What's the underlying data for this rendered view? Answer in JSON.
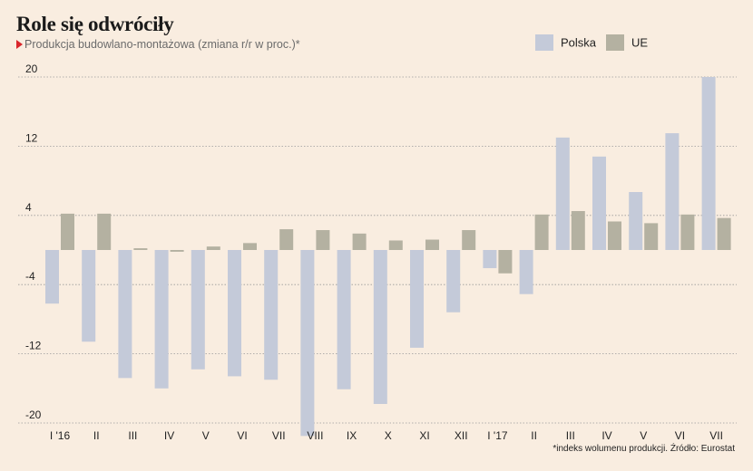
{
  "chart_data": {
    "type": "bar",
    "title": "Role się odwróciły",
    "subtitle": "Produkcja budowlano-montażowa (zmiana r/r w proc.)*",
    "categories": [
      "I '16",
      "II",
      "III",
      "IV",
      "V",
      "VI",
      "VII",
      "VIII",
      "IX",
      "X",
      "XI",
      "XII",
      "I '17",
      "II",
      "III",
      "IV",
      "V",
      "VI",
      "VII"
    ],
    "series": [
      {
        "name": "Polska",
        "color": "#c4cad9",
        "values": [
          -6.2,
          -10.6,
          -14.8,
          -16.0,
          -13.8,
          -14.6,
          -15.0,
          -21.5,
          -16.1,
          -17.8,
          -11.3,
          -7.2,
          -2.1,
          -5.1,
          13.0,
          10.8,
          6.7,
          13.5,
          20.0
        ]
      },
      {
        "name": "UE",
        "color": "#b4b1a1",
        "values": [
          4.2,
          4.2,
          0.2,
          -0.2,
          0.4,
          0.8,
          2.4,
          2.3,
          1.9,
          1.1,
          1.2,
          2.3,
          -2.7,
          4.1,
          4.5,
          3.3,
          3.1,
          4.1,
          3.7
        ]
      }
    ],
    "yticks": [
      20,
      12,
      4,
      -4,
      -12,
      -20
    ],
    "ylim": [
      -21.5,
      21.5
    ],
    "grid": true,
    "legend_position": "top-right",
    "footnote": "*indeks wolumenu produkcji. Źródło: Eurostat"
  }
}
